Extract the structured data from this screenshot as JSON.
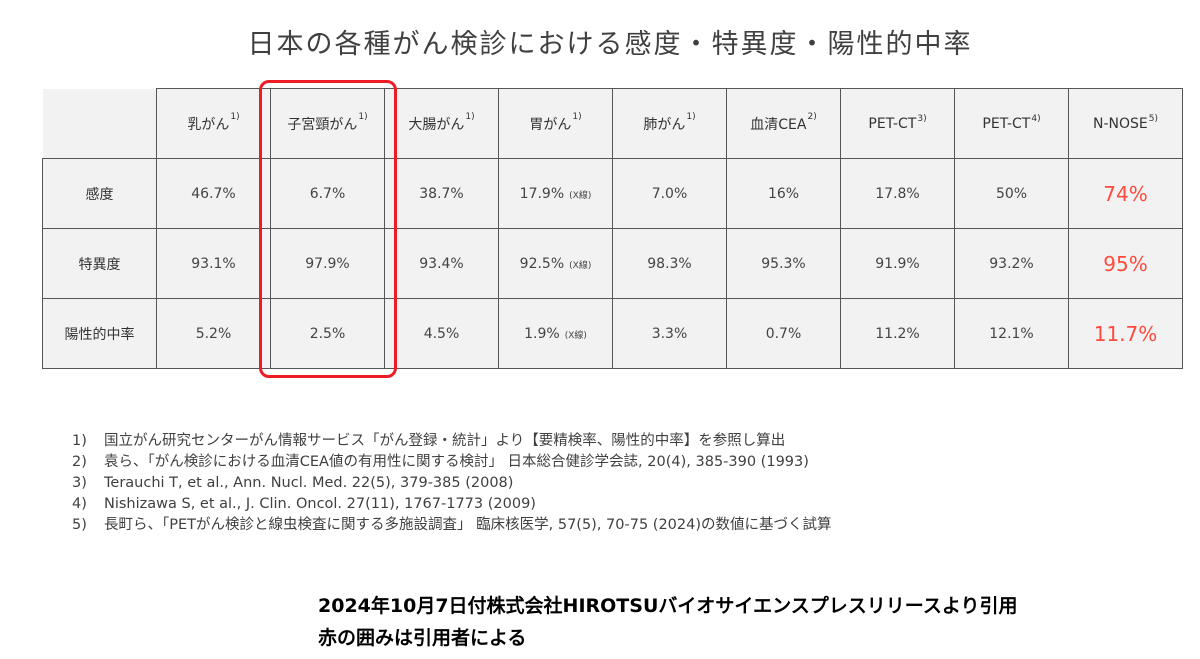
{
  "title": "日本の各種がん検診における感度・特異度・陽性的中率",
  "table": {
    "columns": [
      {
        "label": "乳がん",
        "ref": "1)"
      },
      {
        "label": "子宮頸がん",
        "ref": "1)"
      },
      {
        "label": "大腸がん",
        "ref": "1)"
      },
      {
        "label": "胃がん",
        "ref": "1)"
      },
      {
        "label": "肺がん",
        "ref": "1)"
      },
      {
        "label": "血清CEA",
        "ref": "2)"
      },
      {
        "label": "PET-CT",
        "ref": "3)"
      },
      {
        "label": "PET-CT",
        "ref": "4)"
      },
      {
        "label": "N-NOSE",
        "ref": "5)"
      }
    ],
    "rows": [
      {
        "label": "感度",
        "cells": [
          "46.7%",
          "6.7%",
          "38.7%",
          "17.9%",
          "7.0%",
          "16%",
          "17.8%",
          "50%",
          "74%"
        ],
        "notes": [
          "",
          "",
          "",
          "(X線)",
          "",
          "",
          "",
          "",
          ""
        ]
      },
      {
        "label": "特異度",
        "cells": [
          "93.1%",
          "97.9%",
          "93.4%",
          "92.5%",
          "98.3%",
          "95.3%",
          "91.9%",
          "93.2%",
          "95%"
        ],
        "notes": [
          "",
          "",
          "",
          "(X線)",
          "",
          "",
          "",
          "",
          ""
        ]
      },
      {
        "label": "陽性的中率",
        "cells": [
          "5.2%",
          "2.5%",
          "4.5%",
          "1.9%",
          "3.3%",
          "0.7%",
          "11.2%",
          "12.1%",
          "11.7%"
        ],
        "notes": [
          "",
          "",
          "",
          "(X線)",
          "",
          "",
          "",
          "",
          ""
        ]
      }
    ]
  },
  "references": [
    {
      "num": "1)",
      "text": "国立がん研究センターがん情報サービス「がん登録・統計」より【要精検率、陽性的中率】を参照し算出"
    },
    {
      "num": "2)",
      "text": "袁ら、「がん検診における血清CEA値の有用性に関する検討」 日本総合健診学会誌, 20(4), 385-390 (1993)"
    },
    {
      "num": "3)",
      "text": "Terauchi T, et al., Ann. Nucl. Med. 22(5), 379-385 (2008)"
    },
    {
      "num": "4)",
      "text": "Nishizawa S, et al., J. Clin. Oncol. 27(11), 1767-1773 (2009)"
    },
    {
      "num": "5)",
      "text": "長町ら、「PETがん検診と線虫検査に関する多施設調査」 臨床核医学, 57(5), 70-75 (2024)の数値に基づく試算"
    }
  ],
  "footer": {
    "line1": "2024年10月7日付株式会社HIROTSUバイオサイエンスプレスリリースより引用",
    "line2": "赤の囲みは引用者による"
  },
  "colors": {
    "nnose_header_bg": "#c55a11",
    "nnose_cell_bg": "#fce4d6",
    "nnose_text": "#ff4b3e",
    "highlight_box": "#ee1c25",
    "row_header_bg": "#d9d9d9",
    "cell_bg": "#f2f2f2"
  }
}
